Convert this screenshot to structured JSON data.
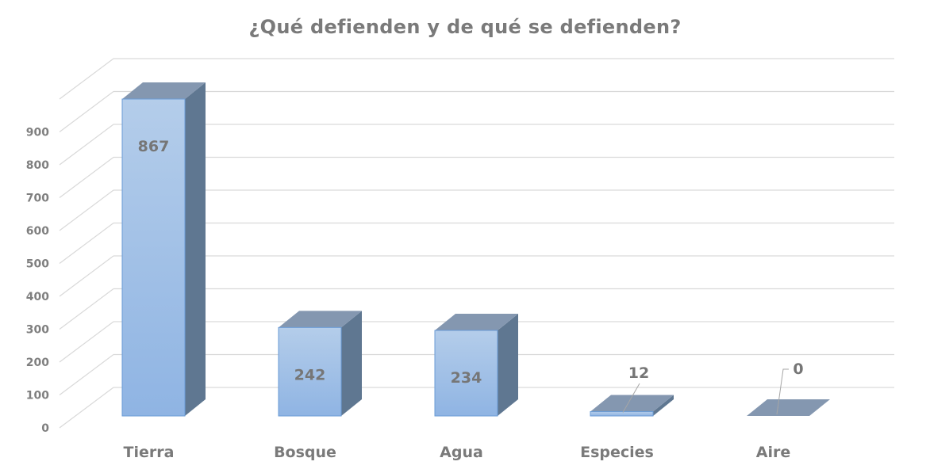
{
  "chart_data": {
    "type": "bar",
    "title": "¿Qué defienden y de qué se defienden?",
    "categories": [
      "Tierra",
      "Bosque",
      "Agua",
      "Especies",
      "Aire"
    ],
    "values": [
      867,
      242,
      234,
      12,
      0
    ],
    "xlabel": "",
    "ylabel": "",
    "ylim": [
      0,
      1000
    ],
    "yticks": [
      0,
      100,
      200,
      300,
      400,
      500,
      600,
      700,
      800,
      900
    ],
    "grid": true,
    "legend": false,
    "style": "3d-column",
    "data_labels": true,
    "colors": {
      "front_top": "#b4cdea",
      "front_bottom": "#8fb4e3",
      "top_face": "#8497b0",
      "side_face": "#5f7791",
      "edge": "#6a9bd6",
      "grid": "#d9d9d9",
      "text": "#7a7a7a"
    }
  }
}
